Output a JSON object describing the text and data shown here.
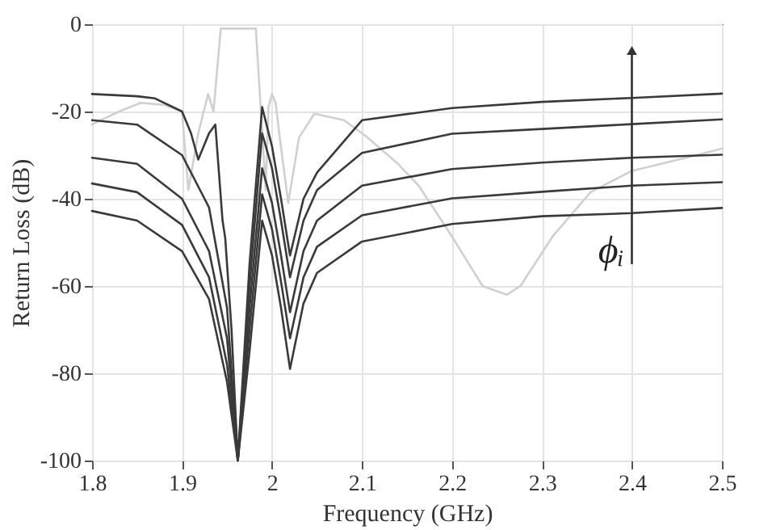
{
  "chart_data": {
    "type": "line",
    "xlabel": "Frequency (GHz)",
    "ylabel": "Return Loss (dB)",
    "xlim": [
      1.8,
      2.5
    ],
    "xticks": [
      1.8,
      1.9,
      2,
      2.1,
      2.2,
      2.3,
      2.4,
      2.5
    ],
    "ylim": [
      -100,
      0
    ],
    "yticks": [
      -100,
      -80,
      -60,
      -40,
      -20,
      0
    ],
    "grid": true,
    "marker": "none",
    "line_style": "solid",
    "annotations": [
      "ϕᵢ"
    ],
    "series": [
      {
        "color": "#d0d0d0",
        "x": [
          1.8,
          1.83,
          1.854,
          1.88,
          1.9,
          1.907,
          1.918,
          1.929,
          1.935,
          1.943,
          1.96,
          1.982,
          1.993,
          1.996,
          2.0,
          2.004,
          2.008,
          2.018,
          2.03,
          2.047,
          2.08,
          2.104,
          2.14,
          2.163,
          2.198,
          2.234,
          2.261,
          2.276,
          2.312,
          2.354,
          2.4,
          2.46,
          2.5
        ],
        "values": [
          -23,
          -20,
          -18,
          -18.5,
          -20,
          -38,
          -25,
          -16,
          -20,
          -1,
          -1,
          -1,
          -38,
          -19,
          -16,
          -18,
          -25,
          -41,
          -26,
          -20.5,
          -22,
          -25.6,
          -32,
          -37,
          -48,
          -60,
          -62,
          -60,
          -48.6,
          -38.5,
          -33.6,
          -30.6,
          -28.5
        ]
      },
      {
        "color": "#3a3a3a",
        "x": [
          1.8,
          1.85,
          1.87,
          1.9,
          1.91,
          1.918,
          1.93,
          1.937,
          1.945,
          1.948,
          1.955,
          1.962,
          1.975,
          1.989,
          2.0,
          2.01,
          2.02,
          2.035,
          2.05,
          2.1,
          2.2,
          2.3,
          2.4,
          2.5
        ],
        "values": [
          -16,
          -16.5,
          -17,
          -20,
          -25,
          -31,
          -25,
          -23,
          -45,
          -49,
          -70,
          -100,
          -55,
          -19,
          -28,
          -40,
          -53,
          -40,
          -34,
          -22,
          -19.2,
          -17.8,
          -16.9,
          -15.9
        ]
      },
      {
        "color": "#3a3a3a",
        "x": [
          1.8,
          1.85,
          1.9,
          1.93,
          1.95,
          1.962,
          1.975,
          1.989,
          2.0,
          2.01,
          2.02,
          2.035,
          2.05,
          2.1,
          2.2,
          2.3,
          2.4,
          2.5
        ],
        "values": [
          -22,
          -23,
          -30,
          -42,
          -65,
          -100,
          -60,
          -25,
          -33,
          -45,
          -58,
          -45,
          -38,
          -29.5,
          -25.1,
          -24,
          -22.9,
          -21.8
        ]
      },
      {
        "color": "#3a3a3a",
        "x": [
          1.8,
          1.85,
          1.9,
          1.93,
          1.95,
          1.962,
          1.975,
          1.989,
          2.0,
          2.01,
          2.02,
          2.035,
          2.05,
          2.1,
          2.2,
          2.3,
          2.4,
          2.5
        ],
        "values": [
          -30.6,
          -32,
          -40,
          -52,
          -72,
          -100,
          -65,
          -33,
          -41,
          -53,
          -66,
          -52,
          -45,
          -37,
          -33.2,
          -31.7,
          -30.6,
          -29.9
        ]
      },
      {
        "color": "#3a3a3a",
        "x": [
          1.8,
          1.85,
          1.9,
          1.93,
          1.95,
          1.962,
          1.975,
          1.989,
          2.0,
          2.01,
          2.02,
          2.035,
          2.05,
          2.1,
          2.2,
          2.3,
          2.4,
          2.5
        ],
        "values": [
          -36.5,
          -38.5,
          -46,
          -58,
          -78,
          -100,
          -70,
          -39,
          -47,
          -59,
          -72,
          -58,
          -51,
          -43.8,
          -39.9,
          -38.4,
          -37,
          -36.2
        ]
      },
      {
        "color": "#3a3a3a",
        "x": [
          1.8,
          1.85,
          1.9,
          1.93,
          1.95,
          1.962,
          1.975,
          1.989,
          2.0,
          2.01,
          2.02,
          2.035,
          2.05,
          2.1,
          2.2,
          2.3,
          2.4,
          2.5
        ],
        "values": [
          -42.8,
          -45,
          -52,
          -63,
          -82,
          -100,
          -75,
          -45,
          -53,
          -65,
          -79,
          -64,
          -57,
          -49.8,
          -45.8,
          -44,
          -43.3,
          -42.1
        ]
      }
    ]
  }
}
